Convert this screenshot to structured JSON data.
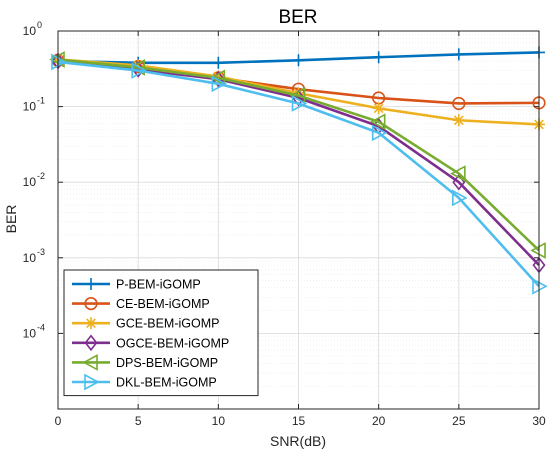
{
  "chart_data": {
    "type": "line",
    "title": "BER",
    "xlabel": "SNR(dB)",
    "ylabel": "BER",
    "y_scale": "log",
    "x": [
      0,
      5,
      10,
      15,
      20,
      25,
      30
    ],
    "xlim": [
      0,
      30
    ],
    "ylim": [
      1e-05,
      1
    ],
    "x_ticks": [
      "0",
      "5",
      "10",
      "15",
      "20",
      "25",
      "30"
    ],
    "y_ticks": [
      {
        "value": 1,
        "mant": "10",
        "exp": "0"
      },
      {
        "value": 0.1,
        "mant": "10",
        "exp": "-1"
      },
      {
        "value": 0.01,
        "mant": "10",
        "exp": "-2"
      },
      {
        "value": 0.001,
        "mant": "10",
        "exp": "-3"
      },
      {
        "value": 0.0001,
        "mant": "10",
        "exp": "-4"
      }
    ],
    "grid": true,
    "legend_position": "bottom-left",
    "series": [
      {
        "name": "P-BEM-iGOMP",
        "color": "#0072BD",
        "marker": "plus",
        "values": [
          0.4,
          0.38,
          0.38,
          0.41,
          0.45,
          0.49,
          0.52
        ]
      },
      {
        "name": "CE-BEM-iGOMP",
        "color": "#D95319",
        "marker": "circle",
        "values": [
          0.41,
          0.34,
          0.24,
          0.17,
          0.13,
          0.11,
          0.112
        ]
      },
      {
        "name": "GCE-BEM-iGOMP",
        "color": "#EDB120",
        "marker": "asterisk",
        "values": [
          0.42,
          0.35,
          0.25,
          0.15,
          0.095,
          0.066,
          0.058
        ]
      },
      {
        "name": "OGCE-BEM-iGOMP",
        "color": "#7E2F8E",
        "marker": "diamond",
        "values": [
          0.4,
          0.31,
          0.23,
          0.13,
          0.055,
          0.01,
          0.0008
        ]
      },
      {
        "name": "DPS-BEM-iGOMP",
        "color": "#77AC30",
        "marker": "triangle-left",
        "values": [
          0.42,
          0.33,
          0.24,
          0.14,
          0.063,
          0.013,
          0.00125
        ]
      },
      {
        "name": "DKL-BEM-iGOMP",
        "color": "#4DBEEE",
        "marker": "triangle-right",
        "values": [
          0.39,
          0.3,
          0.2,
          0.11,
          0.045,
          0.0062,
          0.00042
        ]
      }
    ]
  }
}
